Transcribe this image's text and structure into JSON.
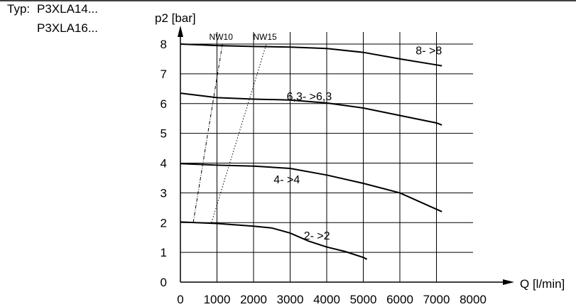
{
  "type_block": {
    "prefix": "Typ:",
    "models": [
      "P3XLA14...",
      "P3XLA16..."
    ]
  },
  "chart_data": {
    "type": "line",
    "ylabel": "p2 [bar]",
    "xlabel": "Q [l/min]",
    "xlim": [
      0,
      8000
    ],
    "ylim": [
      0,
      8
    ],
    "xticks": [
      0,
      1000,
      2000,
      3000,
      4000,
      5000,
      6000,
      7000,
      8000
    ],
    "yticks": [
      0,
      1,
      2,
      3,
      4,
      5,
      6,
      7,
      8
    ],
    "grid": true,
    "series": [
      {
        "name": "8- >8",
        "x": [
          0,
          1000,
          2000,
          3000,
          4000,
          5000,
          6000,
          7000,
          7150
        ],
        "y": [
          8.0,
          7.95,
          7.92,
          7.9,
          7.85,
          7.72,
          7.5,
          7.3,
          7.27
        ]
      },
      {
        "name": "6,3- >6,3",
        "x": [
          0,
          1000,
          2000,
          3000,
          4000,
          5000,
          6000,
          7000,
          7150
        ],
        "y": [
          6.35,
          6.2,
          6.15,
          6.12,
          6.02,
          5.85,
          5.6,
          5.35,
          5.28
        ]
      },
      {
        "name": "4- >4",
        "x": [
          0,
          1000,
          2000,
          3000,
          4000,
          5000,
          6000,
          7000,
          7150
        ],
        "y": [
          3.98,
          3.93,
          3.9,
          3.82,
          3.6,
          3.32,
          3.0,
          2.45,
          2.37
        ]
      },
      {
        "name": "2- >2",
        "x": [
          0,
          1000,
          2000,
          2500,
          3000,
          3500,
          4000,
          4500,
          5000,
          5100
        ],
        "y": [
          2.02,
          1.97,
          1.88,
          1.82,
          1.65,
          1.38,
          1.18,
          1.03,
          0.83,
          0.77
        ]
      }
    ],
    "pipe_lines": [
      {
        "name": "NW10",
        "x": [
          350,
          1150
        ],
        "y": [
          2.0,
          8.0
        ]
      },
      {
        "name": "NW15",
        "x": [
          850,
          2350
        ],
        "y": [
          2.0,
          8.0
        ]
      }
    ]
  }
}
